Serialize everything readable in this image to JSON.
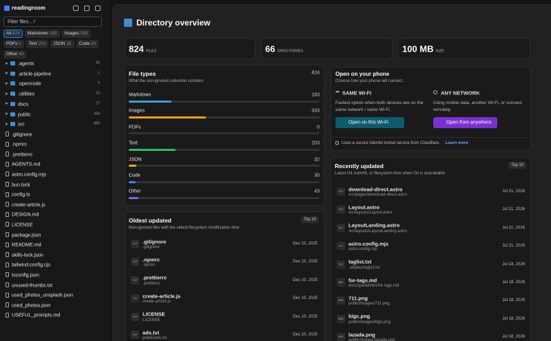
{
  "sidebar": {
    "app_name": "readingroom",
    "filter_placeholder": "Filter files...  /",
    "chips": [
      {
        "label": "All",
        "count": 824
      },
      {
        "label": "Markdown",
        "count": 183
      },
      {
        "label": "Images",
        "count": 333
      },
      {
        "label": "PDFs",
        "count": 0
      },
      {
        "label": "Text",
        "count": 203
      },
      {
        "label": "JSON",
        "count": 32
      },
      {
        "label": "Code",
        "count": 30
      },
      {
        "label": "Other",
        "count": 43
      }
    ],
    "folders": [
      {
        "name": ".agents",
        "count": 40
      },
      {
        "name": ".article-pipeline",
        "count": 1
      },
      {
        "name": ".opencode",
        "count": 6
      },
      {
        "name": ".utilities",
        "count": 10
      },
      {
        "name": "docs",
        "count": 27
      },
      {
        "name": "public",
        "count": 336
      },
      {
        "name": "src",
        "count": 385
      }
    ],
    "files": [
      ".gitignore",
      ".npmrc",
      ".prettierrc",
      "AGENTS.md",
      "astro.config.mjs",
      "bun.lock",
      "config.ts",
      "create-article.js",
      "DESIGN.md",
      "LICENSE",
      "package.json",
      "README.md",
      "skills-lock.json",
      "tailwind.config.cjs",
      "tsconfig.json",
      "unused-thumbs.txt",
      "used_photos_unsplash.json",
      "used_photos.json",
      "USEFUL_prompts.md"
    ]
  },
  "main": {
    "title": "Directory overview",
    "stats": [
      {
        "value": 824,
        "label": "FILES"
      },
      {
        "value": 66,
        "label": "DIRECTORIES"
      },
      {
        "value": "100 MB",
        "label": "SIZE"
      }
    ],
    "file_types": {
      "title": "File types",
      "subtitle": "What the non-ignored collection contains",
      "total": 824,
      "rows": [
        {
          "label": "Markdown",
          "count": 183,
          "color": "#3b9fe8"
        },
        {
          "label": "Images",
          "count": 333,
          "color": "#f59e0b"
        },
        {
          "label": "PDFs",
          "count": 0,
          "color": "#9ca3af"
        },
        {
          "label": "Text",
          "count": 203,
          "color": "#22c55e"
        },
        {
          "label": "JSON",
          "count": 32,
          "color": "#eab308"
        },
        {
          "label": "Code",
          "count": 30,
          "color": "#3b82f6"
        },
        {
          "label": "Other",
          "count": 43,
          "color": "#8b5cf6"
        }
      ]
    },
    "phone": {
      "title": "Open on your phone",
      "subtitle": "Choose how your phone will connect.",
      "wifi_heading": "SAME WI-FI",
      "wifi_text": "Fastest option when both devices are on the same network / same Wi-Fi.",
      "wifi_button": "Open on this Wi-Fi",
      "any_heading": "ANY NETWORK",
      "any_text": "Using mobile data, another Wi-Fi, or connect remotely.",
      "any_button": "Open from anywhere",
      "note": "Uses a secure internet tunnel service from Cloudflare.",
      "link": "Learn more"
    },
    "oldest": {
      "title": "Oldest updated",
      "subtitle": "Non-ignored files with the oldest filesystem modification time",
      "badge": "Top 10",
      "rows": [
        {
          "icon": "TXT",
          "name": ".gitignore",
          "path": ".gitignore",
          "date": "Dec 10, 2025"
        },
        {
          "icon": "TXT",
          "name": ".npmrc",
          "path": ".npmrc",
          "date": "Dec 10, 2025"
        },
        {
          "icon": "TXT",
          "name": ".prettierrc",
          "path": ".prettierrc",
          "date": "Dec 10, 2025"
        },
        {
          "icon": "</>",
          "name": "create-article.js",
          "path": "create-article.js",
          "date": "Dec 10, 2025"
        },
        {
          "icon": "TXT",
          "name": "LICENSE",
          "path": "LICENSE",
          "date": "Dec 10, 2025"
        },
        {
          "icon": "TXT",
          "name": "ads.txt",
          "path": "public/ads.txt",
          "date": "Dec 10, 2025"
        }
      ]
    },
    "recent": {
      "title": "Recently updated",
      "subtitle": "Latest Git commit, or filesystem time when Git is unavailable",
      "badge": "Top 10",
      "rows": [
        {
          "icon": "TXT",
          "name": "download-direct.astro",
          "path": "src/pages/download-direct.astro",
          "date": "Jul 21, 2026"
        },
        {
          "icon": "TXT",
          "name": "Layout.astro",
          "path": "src/layouts/Layout.astro",
          "date": "Jul 21, 2026"
        },
        {
          "icon": "TXT",
          "name": "LayoutLanding.astro",
          "path": "src/layouts/LayoutLanding.astro",
          "date": "Jul 21, 2026"
        },
        {
          "icon": "</>",
          "name": "astro.config.mjs",
          "path": "astro.config.mjs",
          "date": "Jul 21, 2026"
        },
        {
          "icon": "TXT",
          "name": "taglist.txt",
          "path": ".utilities/taglist.txt",
          "date": "Jul 18, 2026"
        },
        {
          "icon": "MD",
          "name": "for-tags.md",
          "path": "docs/guidelines/for-tags.md",
          "date": "Jul 18, 2026"
        },
        {
          "icon": "IMG",
          "name": "711.png",
          "path": "public/images/711.png",
          "date": "Jul 18, 2026"
        },
        {
          "icon": "IMG",
          "name": "bigc.png",
          "path": "public/images/bigc.png",
          "date": "Jul 18, 2026"
        },
        {
          "icon": "IMG",
          "name": "lazada.png",
          "path": "public/images/lazada.png",
          "date": "Jul 18, 2026"
        }
      ]
    }
  }
}
